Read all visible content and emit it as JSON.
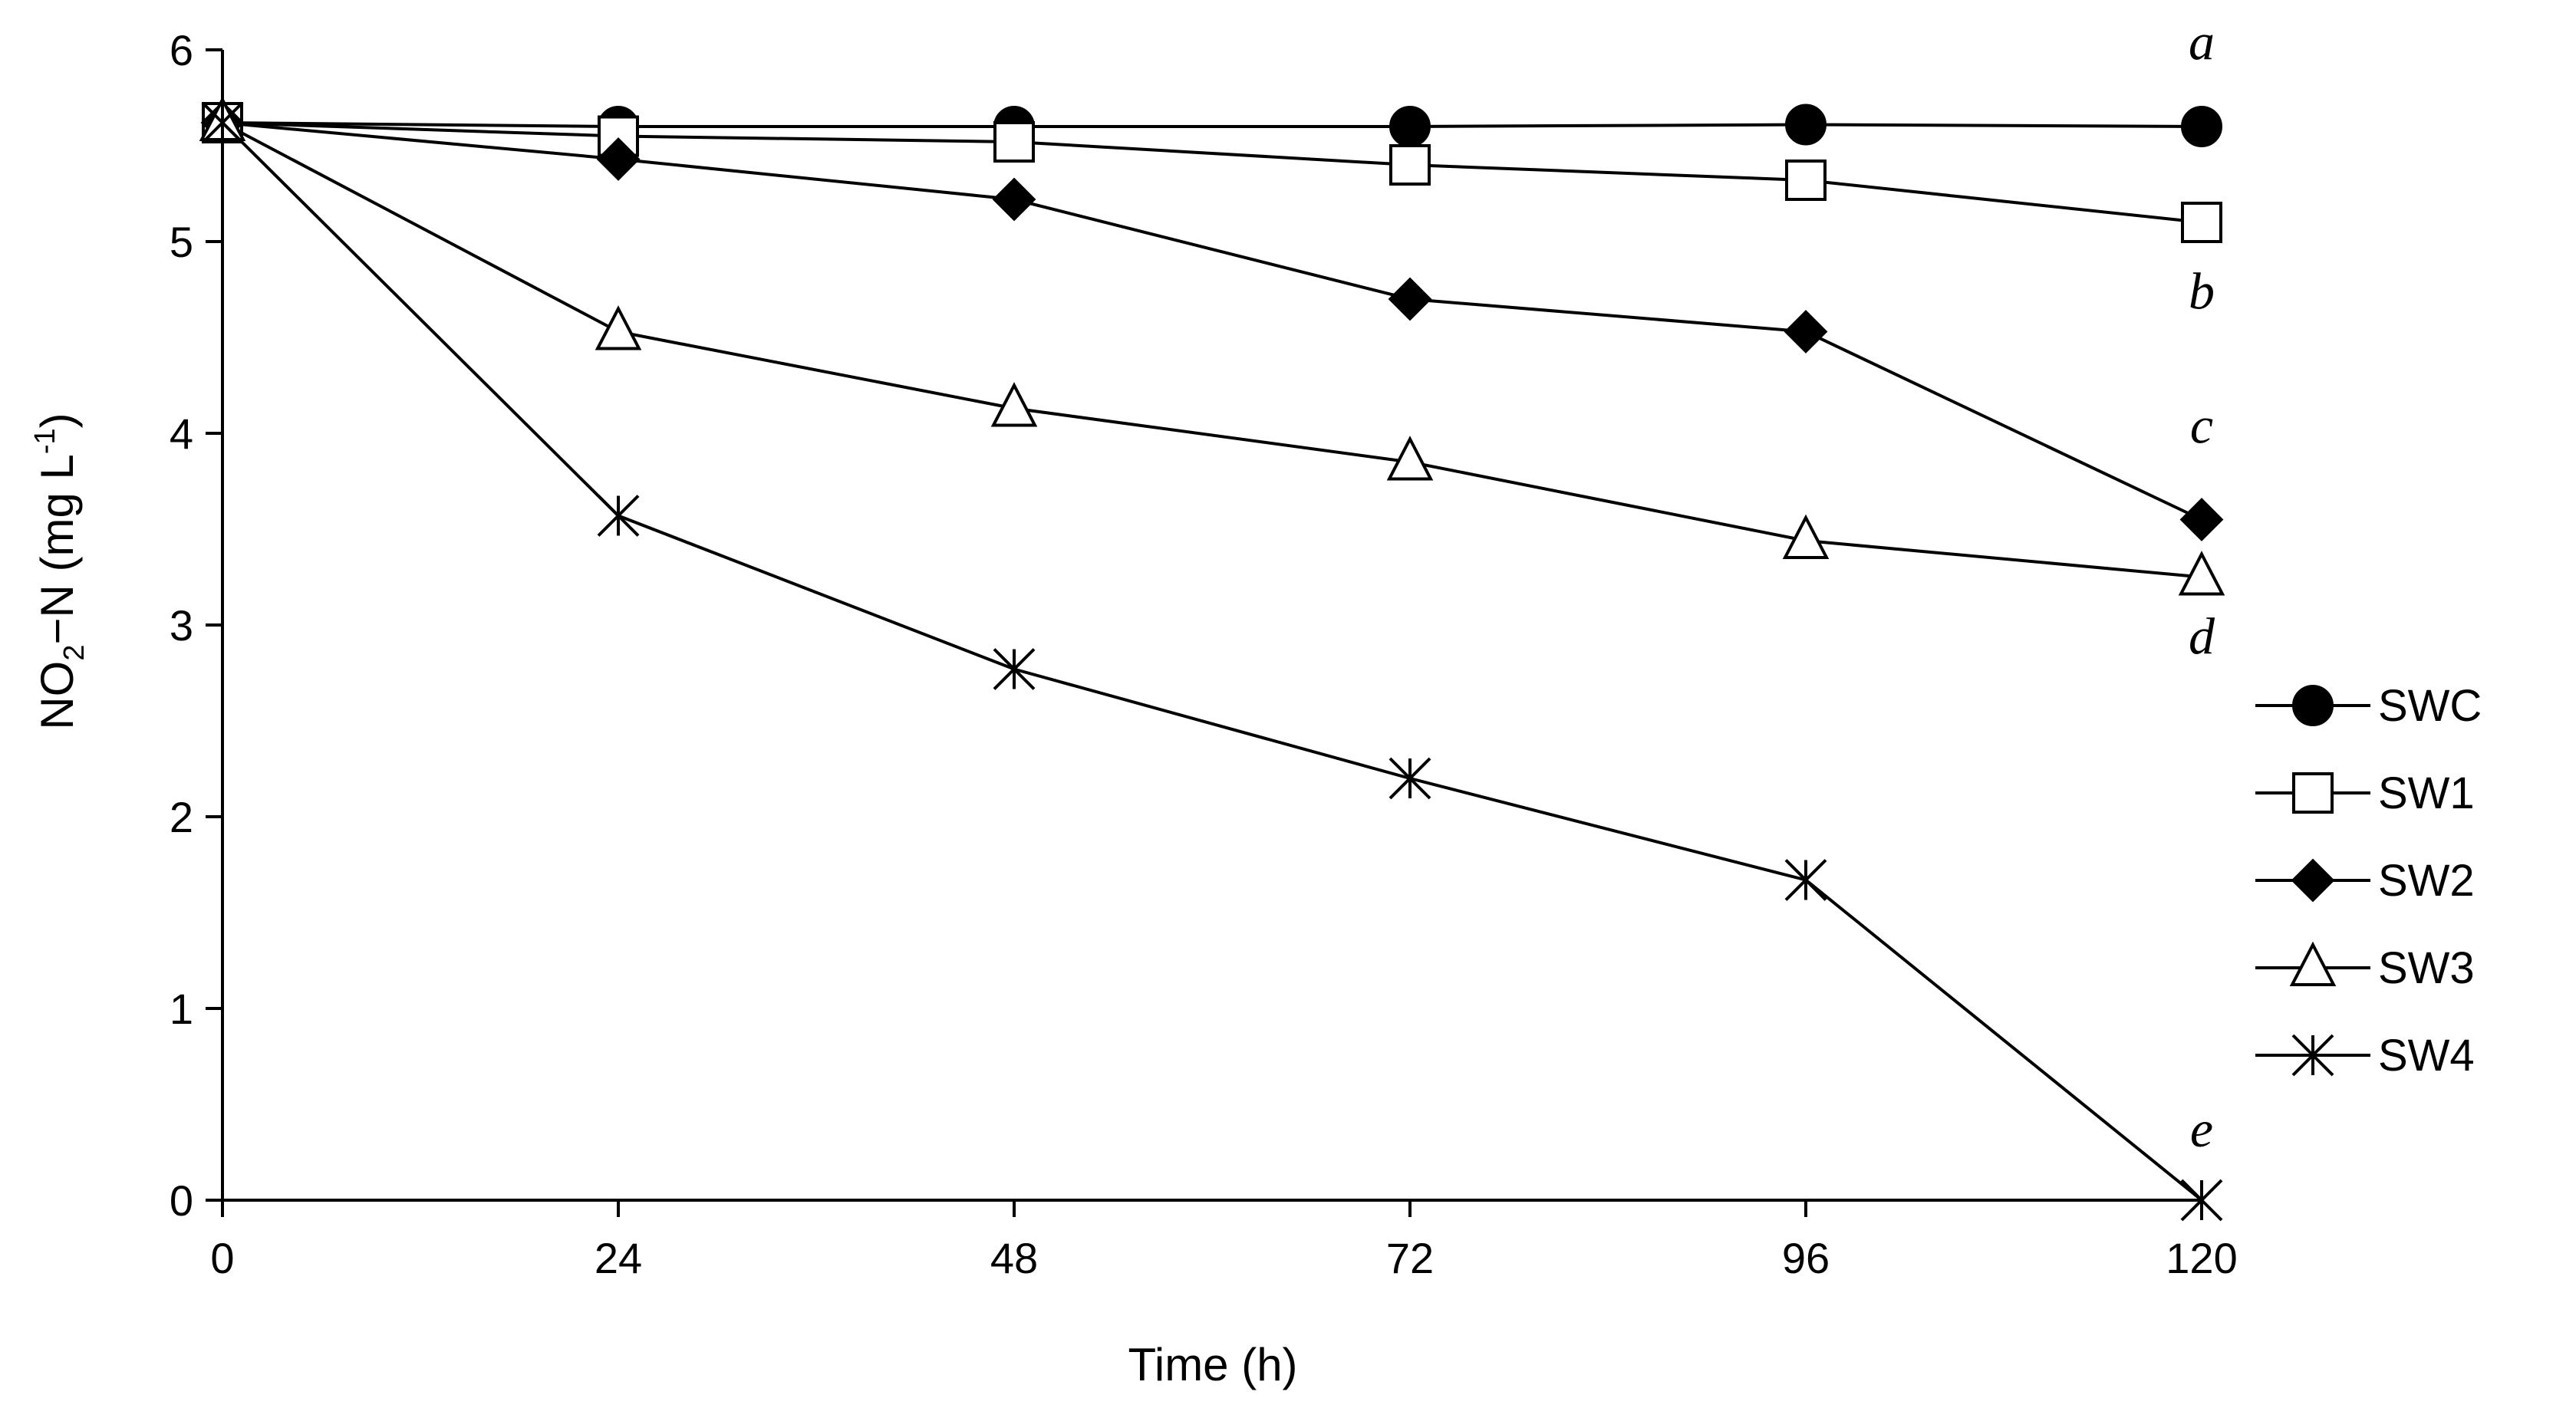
{
  "chart_data": {
    "type": "line",
    "title": "",
    "xlabel": "Time (h)",
    "ylabel": {
      "base": "NO",
      "sub": "2",
      "mid": "−N (mg L",
      "sup": "-1",
      "end": ")"
    },
    "x": [
      0,
      24,
      48,
      72,
      96,
      120
    ],
    "xticks": [
      "0",
      "24",
      "48",
      "72",
      "96",
      "120"
    ],
    "ylim": [
      0,
      6
    ],
    "yticks": [
      "0",
      "1",
      "2",
      "3",
      "4",
      "5",
      "6"
    ],
    "grid": false,
    "legend_position": "right",
    "series": [
      {
        "name": "SWC",
        "marker": "filled-circle",
        "values": [
          5.62,
          5.6,
          5.6,
          5.6,
          5.61,
          5.6
        ]
      },
      {
        "name": "SW1",
        "marker": "open-square",
        "values": [
          5.62,
          5.55,
          5.52,
          5.4,
          5.32,
          5.1
        ]
      },
      {
        "name": "SW2",
        "marker": "filled-diamond",
        "values": [
          5.62,
          5.43,
          5.22,
          4.7,
          4.53,
          3.55
        ]
      },
      {
        "name": "SW3",
        "marker": "open-triangle",
        "values": [
          5.62,
          4.53,
          4.13,
          3.85,
          3.44,
          3.25
        ]
      },
      {
        "name": "SW4",
        "marker": "asterisk",
        "values": [
          5.62,
          3.57,
          2.77,
          2.2,
          1.67,
          0.0
        ]
      }
    ],
    "annotations": [
      {
        "text": "a",
        "x": 120,
        "y": 5.95
      },
      {
        "text": "b",
        "x": 120,
        "y": 4.65
      },
      {
        "text": "c",
        "x": 120,
        "y": 3.95
      },
      {
        "text": "d",
        "x": 120,
        "y": 2.85
      },
      {
        "text": "e",
        "x": 120,
        "y": 0.28
      }
    ]
  }
}
